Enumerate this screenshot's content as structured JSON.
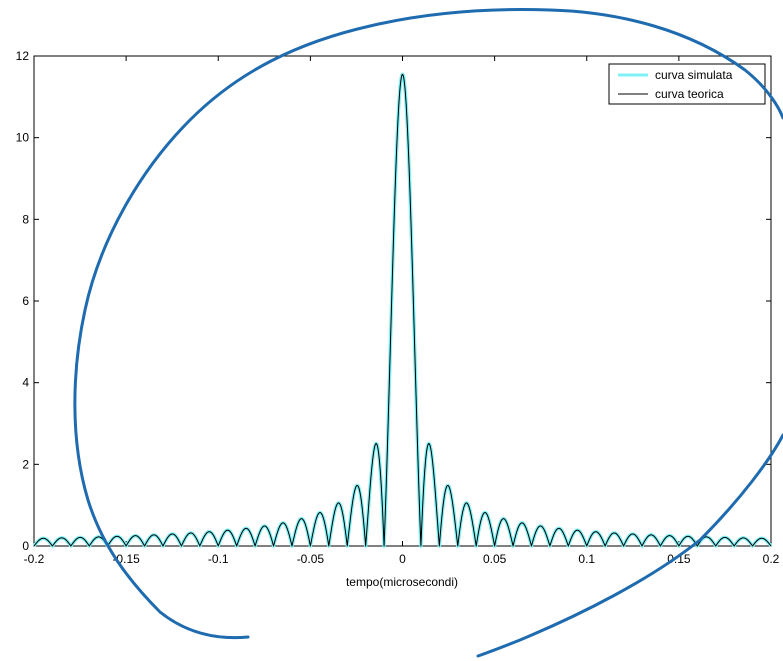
{
  "chart_data": {
    "type": "line",
    "title": "",
    "xlabel": "tempo(microsecondi)",
    "ylabel": "",
    "xlim": [
      -0.2,
      0.2
    ],
    "ylim": [
      0,
      12
    ],
    "x_ticks": [
      -0.2,
      -0.15,
      -0.1,
      -0.05,
      0,
      0.05,
      0.1,
      0.15,
      0.2
    ],
    "x_tick_labels": [
      "-0.2",
      "-0.15",
      "-0.1",
      "-0.05",
      "0",
      "0.05",
      "0.1",
      "0.15",
      "0.2"
    ],
    "y_ticks": [
      0,
      2,
      4,
      6,
      8,
      10,
      12
    ],
    "y_tick_labels": [
      "0",
      "2",
      "4",
      "6",
      "8",
      "10",
      "12"
    ],
    "grid": false,
    "legend_position": "top-right",
    "series": [
      {
        "name": "curva simulata",
        "color": "#7ff0f5",
        "peak_value": 11.55,
        "lobe_spacing": 0.01,
        "notes_points": [
          [
            0,
            11.55
          ],
          [
            0.01,
            2.42
          ],
          [
            0.02,
            1.42
          ],
          [
            0.03,
            0.99
          ],
          [
            0.04,
            0.74
          ],
          [
            0.05,
            0.55
          ],
          [
            0.1,
            0.25
          ],
          [
            0.15,
            0.16
          ],
          [
            0.2,
            0.08
          ]
        ]
      },
      {
        "name": "curva teorica",
        "color": "#000000",
        "peak_value": 11.55,
        "lobe_spacing": 0.01,
        "notes_points": [
          [
            0,
            11.55
          ],
          [
            0.01,
            2.42
          ],
          [
            0.02,
            1.42
          ],
          [
            0.03,
            0.99
          ],
          [
            0.04,
            0.74
          ],
          [
            0.05,
            0.55
          ],
          [
            0.1,
            0.25
          ],
          [
            0.15,
            0.16
          ],
          [
            0.2,
            0.08
          ]
        ]
      }
    ]
  },
  "annotation": {
    "color": "#1f6bb0"
  }
}
